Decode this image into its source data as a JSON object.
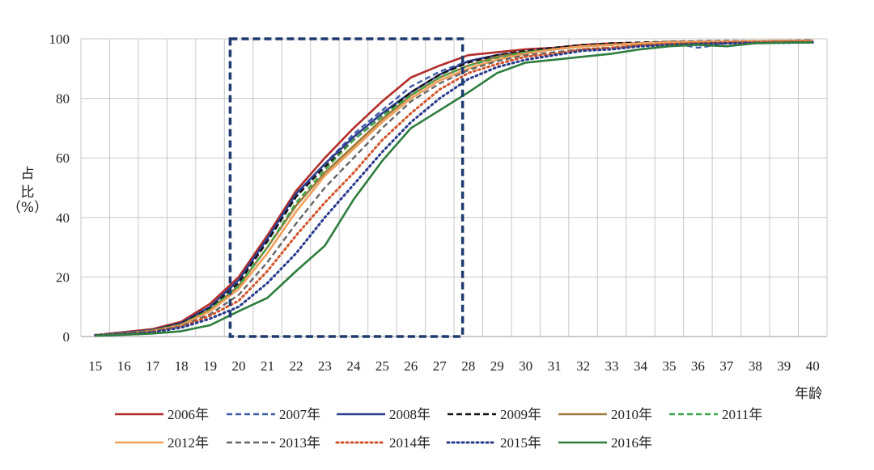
{
  "chart_data": {
    "type": "line",
    "title": "",
    "xlabel": "年龄",
    "ylabel": "占比（%）",
    "ylabel_lines": [
      "占",
      "比",
      "（%）"
    ],
    "xlim": [
      15,
      40
    ],
    "ylim": [
      0,
      100
    ],
    "yticks": [
      0,
      20,
      40,
      60,
      80,
      100
    ],
    "x": [
      15,
      16,
      17,
      18,
      19,
      20,
      21,
      22,
      23,
      24,
      25,
      26,
      27,
      28,
      29,
      30,
      31,
      32,
      33,
      34,
      35,
      36,
      37,
      38,
      39,
      40
    ],
    "grid": true,
    "legend": "bottom",
    "highlight_box": {
      "x_range": [
        19.7,
        27.8
      ],
      "y_range": [
        0,
        100
      ],
      "style": "dashed",
      "color": "#1f3a6e"
    },
    "series": [
      {
        "name": "2006年",
        "color": "#b22d2a",
        "dash": "solid",
        "values": [
          0.5,
          1.5,
          2.5,
          5,
          11,
          20,
          34,
          49,
          60,
          70,
          79,
          87,
          91,
          94.5,
          95.5,
          96.5,
          97,
          98,
          98.5,
          98.5,
          99,
          99,
          99,
          99.2,
          99.3,
          99.4
        ]
      },
      {
        "name": "2007年",
        "color": "#3f5aa8",
        "dash": "dashed",
        "values": [
          0.5,
          1.2,
          2,
          4.5,
          10,
          19,
          32,
          47,
          58,
          68,
          76,
          84,
          89,
          92.5,
          94.5,
          96,
          97,
          97.5,
          98,
          98.5,
          98.8,
          97,
          98.5,
          98.8,
          99,
          99
        ]
      },
      {
        "name": "2008年",
        "color": "#2b3f8c",
        "dash": "solid",
        "values": [
          0.5,
          1.3,
          2.2,
          4.5,
          10,
          19,
          33,
          48,
          58,
          67,
          75,
          82,
          88,
          92.5,
          94.5,
          95.5,
          96.5,
          97.5,
          98,
          98.5,
          98.8,
          99,
          99,
          99.2,
          99.3,
          99.4
        ]
      },
      {
        "name": "2009年",
        "color": "#111111",
        "dash": "dashed",
        "values": [
          0.5,
          1.2,
          2.1,
          4.3,
          9.5,
          18,
          32,
          47,
          57,
          66,
          74,
          82,
          88,
          92,
          94.5,
          96,
          97,
          98,
          98.5,
          98.8,
          99,
          99.2,
          99.3,
          99.3,
          99.4,
          99.5
        ]
      },
      {
        "name": "2010年",
        "color": "#9e7a3a",
        "dash": "solid",
        "values": [
          0.5,
          1.1,
          2,
          4,
          9,
          17,
          30,
          44,
          55,
          64,
          73,
          81,
          87,
          91,
          94,
          95.5,
          96.5,
          97.5,
          98,
          98.5,
          98.8,
          99,
          99.1,
          99.2,
          99.3,
          99.3
        ]
      },
      {
        "name": "2011年",
        "color": "#3fa548",
        "dash": "dashed",
        "values": [
          0.5,
          1.1,
          1.9,
          4,
          9,
          17,
          30,
          45,
          56,
          66,
          74,
          81,
          87,
          91,
          93.5,
          95.5,
          96.5,
          97.5,
          98,
          98.5,
          98.8,
          98.8,
          98.8,
          98.9,
          99,
          99
        ]
      },
      {
        "name": "2012年",
        "color": "#f1a05a",
        "dash": "solid",
        "values": [
          0.5,
          1,
          1.8,
          3.8,
          8.5,
          16,
          28,
          42,
          54,
          63,
          72,
          80,
          86,
          90,
          93,
          95,
          96.5,
          97.5,
          98,
          98.5,
          98.8,
          99,
          99.1,
          99.2,
          99.3,
          99.3
        ]
      },
      {
        "name": "2013年",
        "color": "#666666",
        "dash": "dashed",
        "values": [
          0.5,
          1,
          1.7,
          3.5,
          7.5,
          14,
          25,
          38,
          50,
          60,
          70,
          79,
          85,
          89.5,
          92.5,
          94.5,
          95.5,
          96.5,
          97,
          97.8,
          98.2,
          98.5,
          98.7,
          98.9,
          99,
          99
        ]
      },
      {
        "name": "2014年",
        "color": "#d2542a",
        "dash": "dotted",
        "values": [
          0.5,
          0.9,
          1.6,
          3.2,
          7,
          12,
          22,
          34,
          45,
          55,
          66,
          75,
          83,
          88.5,
          91.5,
          94,
          95,
          96.5,
          97,
          97.8,
          98.3,
          98.5,
          98.7,
          98.8,
          98.9,
          99
        ]
      },
      {
        "name": "2015年",
        "color": "#2a3a8c",
        "dash": "dotted",
        "values": [
          0.4,
          0.8,
          1.4,
          3,
          6,
          10,
          18,
          28,
          40,
          51,
          62,
          72,
          80,
          86.5,
          90.5,
          93,
          94.5,
          96,
          96.5,
          97.5,
          98,
          98.3,
          98.5,
          98.6,
          98.7,
          98.8
        ]
      },
      {
        "name": "2016年",
        "color": "#2e7d3e",
        "dash": "solid",
        "values": [
          0.3,
          0.6,
          1,
          1.8,
          3.8,
          8.5,
          13,
          22,
          30.5,
          46,
          59,
          70,
          76,
          82,
          88.5,
          92,
          93,
          94,
          95,
          96.5,
          97.5,
          98,
          97.5,
          98.5,
          98.7,
          98.8
        ]
      }
    ]
  }
}
